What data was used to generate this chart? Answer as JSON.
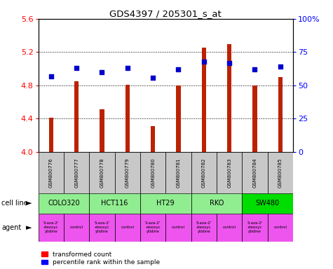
{
  "title": "GDS4397 / 205301_s_at",
  "samples": [
    "GSM800776",
    "GSM800777",
    "GSM800778",
    "GSM800779",
    "GSM800780",
    "GSM800781",
    "GSM800782",
    "GSM800783",
    "GSM800784",
    "GSM800785"
  ],
  "transformed_counts": [
    4.41,
    4.85,
    4.51,
    4.81,
    4.31,
    4.8,
    5.25,
    5.3,
    4.8,
    4.9
  ],
  "percentile_ranks": [
    57,
    63,
    60,
    63,
    56,
    62,
    68,
    67,
    62,
    64
  ],
  "cell_lines": [
    {
      "name": "COLO320",
      "start": 0,
      "end": 2,
      "color": "#90ee90"
    },
    {
      "name": "HCT116",
      "start": 2,
      "end": 4,
      "color": "#90ee90"
    },
    {
      "name": "HT29",
      "start": 4,
      "end": 6,
      "color": "#90ee90"
    },
    {
      "name": "RKO",
      "start": 6,
      "end": 8,
      "color": "#90ee90"
    },
    {
      "name": "SW480",
      "start": 8,
      "end": 10,
      "color": "#00dd00"
    }
  ],
  "agents": [
    {
      "name": "5-aza-2'\n-deoxyc\nytidine",
      "start": 0,
      "end": 1,
      "color": "#ee55ee"
    },
    {
      "name": "control",
      "start": 1,
      "end": 2,
      "color": "#ee55ee"
    },
    {
      "name": "5-aza-2'\n-deoxyc\nytidine",
      "start": 2,
      "end": 3,
      "color": "#ee55ee"
    },
    {
      "name": "control",
      "start": 3,
      "end": 4,
      "color": "#ee55ee"
    },
    {
      "name": "5-aza-2'\n-deoxyc\nytidine",
      "start": 4,
      "end": 5,
      "color": "#ee55ee"
    },
    {
      "name": "control",
      "start": 5,
      "end": 6,
      "color": "#ee55ee"
    },
    {
      "name": "5-aza-2'\n-deoxyc\nytidine",
      "start": 6,
      "end": 7,
      "color": "#ee55ee"
    },
    {
      "name": "control",
      "start": 7,
      "end": 8,
      "color": "#ee55ee"
    },
    {
      "name": "5-aza-2'\n-deoxyc\nytidine",
      "start": 8,
      "end": 9,
      "color": "#ee55ee"
    },
    {
      "name": "control",
      "start": 9,
      "end": 10,
      "color": "#ee55ee"
    }
  ],
  "ylim_left": [
    4.0,
    5.6
  ],
  "ylim_right": [
    0,
    100
  ],
  "yticks_left": [
    4.0,
    4.4,
    4.8,
    5.2,
    5.6
  ],
  "yticks_right": [
    0,
    25,
    50,
    75,
    100
  ],
  "bar_color": "#bb2200",
  "dot_color": "#0000cc",
  "bar_width": 0.18,
  "sample_bg_color": "#c8c8c8"
}
